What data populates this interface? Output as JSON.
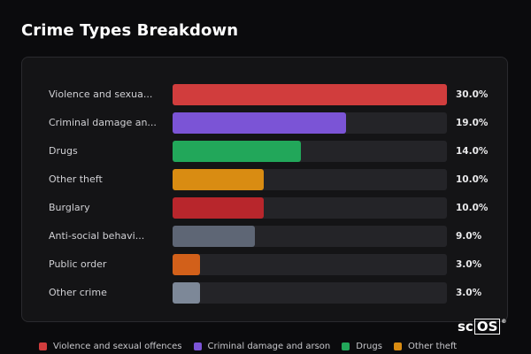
{
  "title": "Crime Types Breakdown",
  "logo": {
    "prefix": "sc",
    "boxed": "OS",
    "mark": "®"
  },
  "colors": {
    "background": "#0b0b0d",
    "panel": "#141416",
    "track": "#242428"
  },
  "chart_data": {
    "type": "bar",
    "orientation": "horizontal",
    "title": "Crime Types Breakdown",
    "categories": [
      "Violence and sexua...",
      "Criminal damage an...",
      "Drugs",
      "Other theft",
      "Burglary",
      "Anti-social behavi...",
      "Public order",
      "Other crime"
    ],
    "values": [
      30.0,
      19.0,
      14.0,
      10.0,
      10.0,
      9.0,
      3.0,
      3.0
    ],
    "value_labels": [
      "30.0%",
      "19.0%",
      "14.0%",
      "10.0%",
      "10.0%",
      "9.0%",
      "3.0%",
      "3.0%"
    ],
    "colors": [
      "#d13d3d",
      "#7b54d6",
      "#22a75a",
      "#d98c12",
      "#b8262c",
      "#5e6675",
      "#d2601a",
      "#7d8898"
    ],
    "xlim": [
      0,
      30
    ],
    "grid": false,
    "legend_position": "bottom",
    "legend": [
      {
        "label": "Violence and sexual offences",
        "color": "#d13d3d"
      },
      {
        "label": "Criminal damage and arson",
        "color": "#7b54d6"
      },
      {
        "label": "Drugs",
        "color": "#22a75a"
      },
      {
        "label": "Other theft",
        "color": "#d98c12"
      }
    ]
  }
}
